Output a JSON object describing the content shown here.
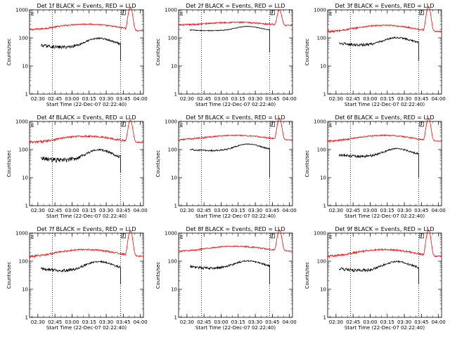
{
  "chart_data": {
    "type": "line",
    "grid_layout": "3x3",
    "shared": {
      "xlabel": "Start Time (22-Dec-07 02:22:40)",
      "ylabel": "Counts/sec",
      "y_scale": "log",
      "ylim": [
        1,
        1000
      ],
      "y_ticks": [
        1,
        10,
        100,
        1000
      ],
      "y_tick_labels": [
        "1",
        "10",
        "100",
        "1000"
      ],
      "xlim_min": [
        0,
        100
      ],
      "x_tick_labels": [
        "02:30",
        "02:45",
        "03:00",
        "03:15",
        "03:30",
        "03:45",
        "04:00"
      ],
      "x_ticks_min": [
        7.33,
        22.33,
        37.33,
        52.33,
        67.33,
        82.33,
        97.33
      ],
      "dotted_vlines_min": [
        20,
        80
      ],
      "marker_label": "E",
      "marker_label_2": "L",
      "series_names": [
        "Events",
        "LLD"
      ],
      "series_colors": {
        "Events": "#000000",
        "LLD": "#ff0000"
      }
    },
    "panels": [
      {
        "title": "Det 1f BLACK = Events, RED = LLD",
        "events": {
          "t0": 10,
          "t1": 80,
          "base": 55,
          "amp": 35,
          "ripple": 6,
          "drop": 15
        },
        "lld": {
          "base": 200,
          "amp": 110,
          "ripple": 15,
          "spike": 1250,
          "tail": 180
        }
      },
      {
        "title": "Det 2f BLACK = Events, RED = LLD",
        "events": {
          "t0": 10,
          "t1": 80,
          "base": 190,
          "amp": 60,
          "ripple": 6,
          "drop": 30
        },
        "lld": {
          "base": 290,
          "amp": 70,
          "ripple": 20,
          "spike": 1000,
          "tail": 280
        }
      },
      {
        "title": "Det 3f BLACK = Events, RED = LLD",
        "events": {
          "t0": 10,
          "t1": 80,
          "base": 65,
          "amp": 30,
          "ripple": 6,
          "drop": 15
        },
        "lld": {
          "base": 170,
          "amp": 110,
          "ripple": 15,
          "spike": 1300,
          "tail": 170
        }
      },
      {
        "title": "Det 4f BLACK = Events, RED = LLD",
        "events": {
          "t0": 10,
          "t1": 80,
          "base": 50,
          "amp": 40,
          "ripple": 8,
          "drop": 15
        },
        "lld": {
          "base": 180,
          "amp": 120,
          "ripple": 20,
          "spike": 1100,
          "tail": 180
        }
      },
      {
        "title": "Det 5f BLACK = Events, RED = LLD",
        "events": {
          "t0": 10,
          "t1": 80,
          "base": 100,
          "amp": 50,
          "ripple": 6,
          "drop": 10
        },
        "lld": {
          "base": 230,
          "amp": 90,
          "ripple": 15,
          "spike": 1300,
          "tail": 220
        }
      },
      {
        "title": "Det 6f BLACK = Events, RED = LLD",
        "events": {
          "t0": 10,
          "t1": 80,
          "base": 65,
          "amp": 35,
          "ripple": 6,
          "drop": 10
        },
        "lld": {
          "base": 200,
          "amp": 120,
          "ripple": 15,
          "spike": 1300,
          "tail": 200
        }
      },
      {
        "title": "Det 7f BLACK = Events, RED = LLD",
        "events": {
          "t0": 10,
          "t1": 80,
          "base": 55,
          "amp": 35,
          "ripple": 6,
          "drop": 15
        },
        "lld": {
          "base": 150,
          "amp": 110,
          "ripple": 15,
          "spike": 1200,
          "tail": 150
        }
      },
      {
        "title": "Det 8f BLACK = Events, RED = LLD",
        "events": {
          "t0": 10,
          "t1": 80,
          "base": 65,
          "amp": 30,
          "ripple": 6,
          "drop": 15
        },
        "lld": {
          "base": 230,
          "amp": 110,
          "ripple": 15,
          "spike": 1300,
          "tail": 230
        }
      },
      {
        "title": "Det 9f BLACK = Events, RED = LLD",
        "events": {
          "t0": 10,
          "t1": 80,
          "base": 55,
          "amp": 35,
          "ripple": 6,
          "drop": 15
        },
        "lld": {
          "base": 150,
          "amp": 110,
          "ripple": 15,
          "spike": 1300,
          "tail": 150
        }
      }
    ]
  }
}
